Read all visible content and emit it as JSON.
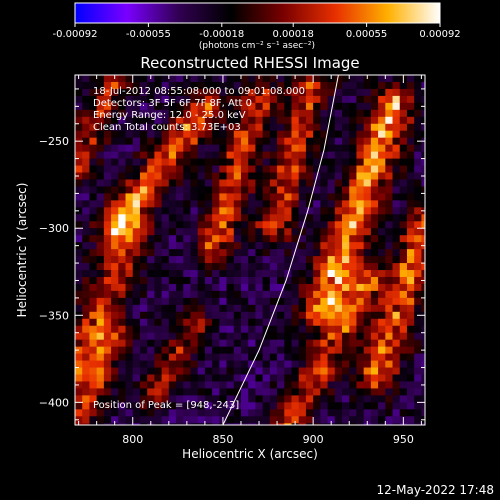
{
  "chart_data": {
    "type": "heatmap",
    "title": "Reconstructed RHESSI Image",
    "xlabel": "Heliocentric X (arcsec)",
    "ylabel": "Heliocentric Y (arcsec)",
    "xlim": [
      768,
      962
    ],
    "ylim": [
      -413,
      -212
    ],
    "x_ticks": [
      800,
      850,
      900,
      950
    ],
    "x_tick_labels": [
      "800",
      "850",
      "900",
      "950"
    ],
    "y_ticks": [
      -250,
      -300,
      -350,
      -400
    ],
    "y_tick_labels": [
      "−250",
      "−300",
      "−350",
      "−400"
    ],
    "annotations": [
      "18-Jul-2012 08:55:08.000 to 09:01:08.000",
      "Detectors: 3F 5F 6F 7F 8F, Att 0",
      "Energy Range: 12.0 - 25.0 keV",
      "Clean    Total counts: 3.73E+03"
    ],
    "peak_label": "Position of Peak = [948,-243]",
    "peak": [
      948,
      -243
    ],
    "colorbar": {
      "range": [
        -0.00092,
        0.00092
      ],
      "ticks": [
        -0.00092,
        -0.00055,
        -0.00018,
        0.00018,
        0.00055,
        0.00092
      ],
      "tick_labels": [
        "-0.00092",
        "-0.00055",
        "-0.00018",
        "0.00018",
        "0.00055",
        "0.00092"
      ],
      "unit_label": "(photons cm⁻² s⁻¹ asec⁻²)"
    },
    "limb": {
      "description": "solar limb",
      "points": [
        [
          850,
          -413
        ],
        [
          870,
          -370
        ],
        [
          885,
          -330
        ],
        [
          897,
          -290
        ],
        [
          906,
          -255
        ],
        [
          914,
          -212
        ]
      ]
    },
    "bands": [
      {
        "x0": 790,
        "y0": -300,
        "x1": 840,
        "y1": -230,
        "amp": 0.00075,
        "width": 7
      },
      {
        "x0": 845,
        "y0": -310,
        "x1": 870,
        "y1": -225,
        "amp": 0.00065,
        "width": 7
      },
      {
        "x0": 878,
        "y0": -300,
        "x1": 900,
        "y1": -215,
        "amp": 0.0006,
        "width": 7
      },
      {
        "x0": 905,
        "y0": -345,
        "x1": 945,
        "y1": -230,
        "amp": 0.00088,
        "width": 8
      },
      {
        "x0": 935,
        "y0": -385,
        "x1": 962,
        "y1": -300,
        "amp": 0.0007,
        "width": 8
      },
      {
        "x0": 768,
        "y0": -380,
        "x1": 800,
        "y1": -300,
        "amp": 0.0006,
        "width": 8
      },
      {
        "x0": 768,
        "y0": -413,
        "x1": 790,
        "y1": -360,
        "amp": 0.00055,
        "width": 7
      },
      {
        "x0": 812,
        "y0": -395,
        "x1": 835,
        "y1": -355,
        "amp": 0.0005,
        "width": 6
      },
      {
        "x0": 886,
        "y0": -413,
        "x1": 930,
        "y1": -330,
        "amp": 0.00062,
        "width": 7
      },
      {
        "x0": 768,
        "y0": -268,
        "x1": 790,
        "y1": -212,
        "amp": 0.00055,
        "width": 6
      }
    ],
    "background": -0.0003,
    "colors": {
      "background": "#000000",
      "foreground": "#ffffff",
      "colormap": [
        "#0000ff",
        "#7a00ff",
        "#300050",
        "#000000",
        "#7a0000",
        "#e83000",
        "#ffb000",
        "#ffffff"
      ]
    }
  },
  "footer": {
    "timestamp": "12-May-2022 17:48"
  }
}
